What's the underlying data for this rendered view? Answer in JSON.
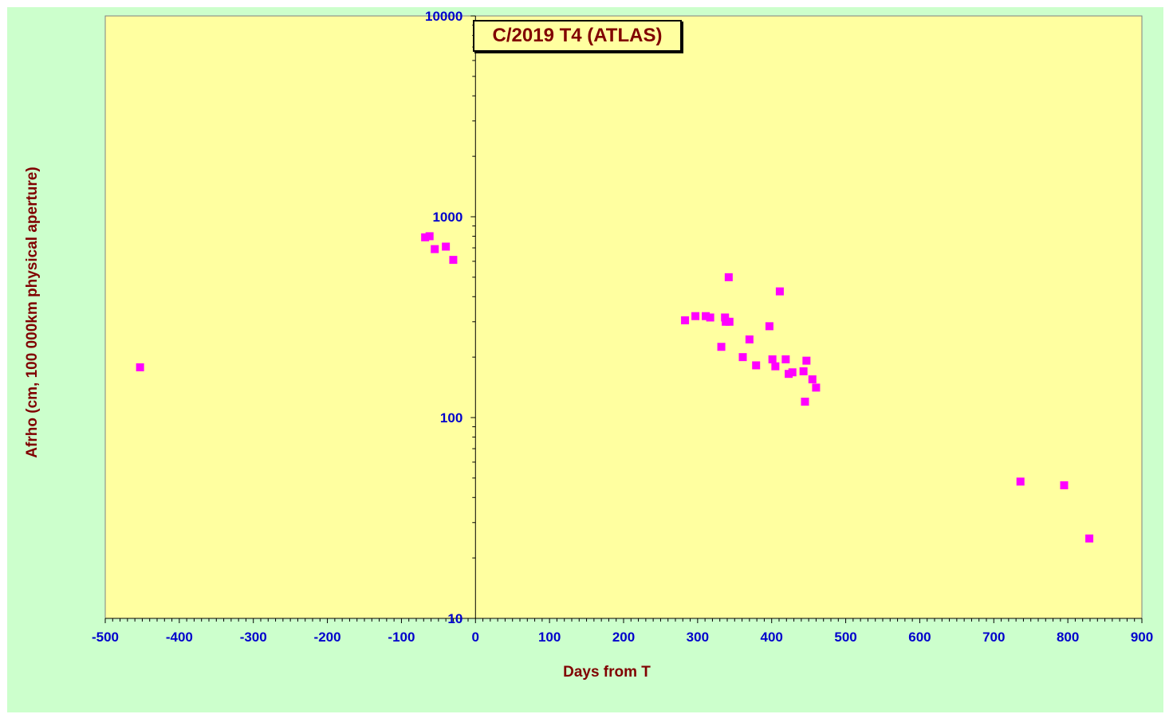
{
  "chart_data": {
    "type": "scatter",
    "title": "C/2019 T4 (ATLAS)",
    "xlabel": "Days from  T",
    "ylabel": "Afrho  (cm, 100 000km physical  aperture)",
    "xlim": [
      -500,
      900
    ],
    "ylim": [
      10,
      10000
    ],
    "yscale": "log",
    "x_ticks": [
      -500,
      -400,
      -300,
      -200,
      -100,
      0,
      100,
      200,
      300,
      400,
      500,
      600,
      700,
      800,
      900
    ],
    "y_ticks": [
      10,
      100,
      1000,
      10000
    ],
    "grid": false,
    "legend": "none",
    "series": [
      {
        "marker": "square",
        "color": "#ff00ff",
        "points": [
          {
            "x": -453,
            "y": 178
          },
          {
            "x": -68,
            "y": 790
          },
          {
            "x": -62,
            "y": 800
          },
          {
            "x": -55,
            "y": 690
          },
          {
            "x": -40,
            "y": 710
          },
          {
            "x": -30,
            "y": 610
          },
          {
            "x": 283,
            "y": 305
          },
          {
            "x": 297,
            "y": 320
          },
          {
            "x": 311,
            "y": 320
          },
          {
            "x": 317,
            "y": 315
          },
          {
            "x": 332,
            "y": 225
          },
          {
            "x": 337,
            "y": 315
          },
          {
            "x": 338,
            "y": 300
          },
          {
            "x": 342,
            "y": 500
          },
          {
            "x": 343,
            "y": 300
          },
          {
            "x": 361,
            "y": 200
          },
          {
            "x": 370,
            "y": 245
          },
          {
            "x": 379,
            "y": 182
          },
          {
            "x": 397,
            "y": 285
          },
          {
            "x": 401,
            "y": 195
          },
          {
            "x": 405,
            "y": 180
          },
          {
            "x": 411,
            "y": 425
          },
          {
            "x": 419,
            "y": 195
          },
          {
            "x": 423,
            "y": 165
          },
          {
            "x": 428,
            "y": 168
          },
          {
            "x": 443,
            "y": 170
          },
          {
            "x": 445,
            "y": 120
          },
          {
            "x": 447,
            "y": 192
          },
          {
            "x": 455,
            "y": 155
          },
          {
            "x": 460,
            "y": 141
          },
          {
            "x": 736,
            "y": 48
          },
          {
            "x": 795,
            "y": 46
          },
          {
            "x": 829,
            "y": 25
          }
        ]
      }
    ]
  },
  "colors": {
    "chart_background": "#ccffcc",
    "plot_background": "#ffffa0",
    "tick_label_color": "#0000cc",
    "axis_title_color": "#800000",
    "marker_color": "#ff00ff"
  }
}
